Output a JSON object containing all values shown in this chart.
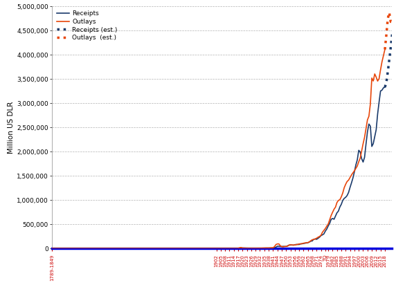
{
  "ylabel": "Million US DLR",
  "receipts_color": "#1a3a6b",
  "outlays_color": "#e8460a",
  "bg_color": "#ffffff",
  "plot_bg_color": "#ffffff",
  "ylim": [
    0,
    5000000
  ],
  "yticks": [
    0,
    500000,
    1000000,
    1500000,
    2000000,
    2500000,
    3000000,
    3500000,
    4000000,
    4500000,
    5000000
  ],
  "receipts_solid_years": [
    1789,
    1800,
    1810,
    1820,
    1830,
    1840,
    1850,
    1855,
    1860,
    1865,
    1866,
    1867,
    1868,
    1869,
    1870,
    1871,
    1872,
    1873,
    1874,
    1875,
    1876,
    1877,
    1878,
    1879,
    1880,
    1881,
    1882,
    1883,
    1884,
    1885,
    1886,
    1887,
    1888,
    1889,
    1890,
    1891,
    1892,
    1893,
    1894,
    1895,
    1896,
    1897,
    1898,
    1899,
    1900,
    1901,
    1902,
    1903,
    1904,
    1905,
    1906,
    1907,
    1908,
    1909,
    1910,
    1911,
    1912,
    1913,
    1914,
    1915,
    1916,
    1917,
    1918,
    1919,
    1920,
    1921,
    1922,
    1923,
    1924,
    1925,
    1926,
    1927,
    1928,
    1929,
    1930,
    1931,
    1932,
    1933,
    1934,
    1935,
    1936,
    1937,
    1938,
    1939,
    1940,
    1941,
    1942,
    1943,
    1944,
    1945,
    1946,
    1947,
    1948,
    1949,
    1950,
    1951,
    1952,
    1953,
    1954,
    1955,
    1956,
    1957,
    1958,
    1959,
    1960,
    1961,
    1962,
    1963,
    1964,
    1965,
    1966,
    1967,
    1968,
    1969,
    1970,
    1971,
    1972,
    1973,
    1974,
    1975,
    1976,
    1977,
    1978,
    1979,
    1980,
    1981,
    1982,
    1983,
    1984,
    1985,
    1986,
    1987,
    1988,
    1989,
    1990,
    1991,
    1992,
    1993,
    1994,
    1995,
    1996,
    1997,
    1998,
    1999,
    2000,
    2001,
    2002,
    2003,
    2004,
    2005,
    2006,
    2007,
    2008,
    2009,
    2010,
    2011,
    2012,
    2013,
    2014,
    2015,
    2016,
    2017,
    2018
  ],
  "receipts_solid_values": [
    4,
    11,
    9,
    18,
    25,
    19,
    44,
    65,
    56,
    333,
    411,
    357,
    301,
    274,
    411,
    363,
    375,
    334,
    305,
    289,
    275,
    269,
    221,
    274,
    334,
    361,
    404,
    398,
    349,
    324,
    336,
    371,
    379,
    392,
    403,
    393,
    402,
    385,
    356,
    335,
    325,
    348,
    405,
    516,
    567,
    588,
    562,
    562,
    541,
    544,
    568,
    603,
    602,
    604,
    676,
    702,
    692,
    724,
    725,
    683,
    761,
    1100,
    3645,
    5130,
    6649,
    5571,
    4026,
    3853,
    3871,
    3641,
    3795,
    4013,
    3900,
    3862,
    4058,
    3116,
    1924,
    1997,
    3015,
    3706,
    3997,
    4956,
    5588,
    4979,
    6548,
    8712,
    14634,
    24001,
    43747,
    45159,
    39296,
    38514,
    41560,
    39415,
    39443,
    51616,
    66167,
    69608,
    69701,
    65451,
    74587,
    79990,
    79636,
    79249,
    92492,
    94388,
    99676,
    106560,
    112613,
    116817,
    130835,
    148822,
    152973,
    186882,
    192807,
    187139,
    207309,
    230799,
    263224,
    279090,
    298060,
    355559,
    399561,
    463302,
    517112,
    599272,
    617766,
    600562,
    666457,
    734057,
    769155,
    854143,
    909238,
    990691,
    1031969,
    1054988,
    1091279,
    1154335,
    1257697,
    1351830,
    1453062,
    1579292,
    1721798,
    1827454,
    2025218,
    1991194,
    1853136,
    1782314,
    1880114,
    2153611,
    2406869,
    2568000,
    2524000,
    2105000,
    2163000,
    2303000,
    2450000,
    2775000,
    3021000,
    3250000,
    3268000,
    3316000,
    3329000
  ],
  "outlays_solid_years": [
    1789,
    1800,
    1810,
    1820,
    1830,
    1840,
    1850,
    1855,
    1860,
    1861,
    1862,
    1863,
    1864,
    1865,
    1866,
    1867,
    1868,
    1869,
    1870,
    1871,
    1872,
    1873,
    1874,
    1875,
    1876,
    1877,
    1878,
    1879,
    1880,
    1881,
    1882,
    1883,
    1884,
    1885,
    1886,
    1887,
    1888,
    1889,
    1890,
    1891,
    1892,
    1893,
    1894,
    1895,
    1896,
    1897,
    1898,
    1899,
    1900,
    1901,
    1902,
    1903,
    1904,
    1905,
    1906,
    1907,
    1908,
    1909,
    1910,
    1911,
    1912,
    1913,
    1914,
    1915,
    1916,
    1917,
    1918,
    1919,
    1920,
    1921,
    1922,
    1923,
    1924,
    1925,
    1926,
    1927,
    1928,
    1929,
    1930,
    1931,
    1932,
    1933,
    1934,
    1935,
    1936,
    1937,
    1938,
    1939,
    1940,
    1941,
    1942,
    1943,
    1944,
    1945,
    1946,
    1947,
    1948,
    1949,
    1950,
    1951,
    1952,
    1953,
    1954,
    1955,
    1956,
    1957,
    1958,
    1959,
    1960,
    1961,
    1962,
    1963,
    1964,
    1965,
    1966,
    1967,
    1968,
    1969,
    1970,
    1971,
    1972,
    1973,
    1974,
    1975,
    1976,
    1977,
    1978,
    1979,
    1980,
    1981,
    1982,
    1983,
    1984,
    1985,
    1986,
    1987,
    1988,
    1989,
    1990,
    1991,
    1992,
    1993,
    1994,
    1995,
    1996,
    1997,
    1998,
    1999,
    2000,
    2001,
    2002,
    2003,
    2004,
    2005,
    2006,
    2007,
    2008,
    2009,
    2010,
    2011,
    2012,
    2013,
    2014,
    2015,
    2016,
    2017,
    2018
  ],
  "outlays_solid_values": [
    4,
    12,
    11,
    18,
    27,
    24,
    40,
    56,
    63,
    67,
    475,
    715,
    865,
    1298,
    521,
    358,
    378,
    321,
    310,
    292,
    278,
    290,
    298,
    275,
    269,
    239,
    237,
    218,
    268,
    260,
    269,
    261,
    258,
    242,
    248,
    239,
    227,
    228,
    318,
    348,
    366,
    352,
    338,
    319,
    335,
    345,
    355,
    372,
    521,
    524,
    485,
    518,
    584,
    567,
    570,
    579,
    659,
    694,
    735,
    691,
    743,
    733,
    760,
    746,
    713,
    1954,
    12677,
    18493,
    6358,
    5062,
    3289,
    3140,
    2908,
    2924,
    2930,
    2857,
    2961,
    3127,
    3320,
    3577,
    4659,
    4598,
    6645,
    6521,
    8422,
    7580,
    6840,
    8858,
    9468,
    13653,
    35137,
    78555,
    91304,
    92712,
    55232,
    34496,
    29764,
    38835,
    42562,
    45514,
    67686,
    76101,
    70855,
    68444,
    70640,
    76578,
    82405,
    92098,
    92191,
    97723,
    106821,
    111316,
    118528,
    118228,
    134532,
    157464,
    178134,
    183640,
    195649,
    210172,
    230681,
    245707,
    269359,
    332332,
    371792,
    409218,
    458746,
    504032,
    590947,
    678241,
    745755,
    808364,
    851846,
    946396,
    990382,
    1004017,
    1064455,
    1143744,
    1252994,
    1323793,
    1381529,
    1409386,
    1461731,
    1515742,
    1560484,
    1601116,
    1652552,
    1701842,
    1788950,
    1862846,
    2010894,
    2159899,
    2292841,
    2471957,
    2655050,
    2728686,
    2982544,
    3517677,
    3457079,
    3603000,
    3537000,
    3455000,
    3506000,
    3688000,
    3853000,
    3982000,
    4108000
  ],
  "receipts_est_years": [
    2018,
    2019,
    2020,
    2021,
    2022,
    2023
  ],
  "receipts_est_values": [
    3329000,
    3422000,
    3645000,
    3894000,
    4145000,
    4420000
  ],
  "outlays_est_years": [
    2018,
    2019,
    2020,
    2021,
    2022,
    2023
  ],
  "outlays_est_values": [
    4108000,
    4407000,
    4745000,
    4870000,
    4680000,
    4680000
  ],
  "xtick_positions": [
    1789,
    1902,
    1905,
    1908,
    1911,
    1914,
    1917,
    1920,
    1923,
    1926,
    1929,
    1932,
    1935,
    1938,
    1941,
    1944,
    1947,
    1950,
    1953,
    1956,
    1959,
    1962,
    1965,
    1968,
    1971,
    1974,
    1977,
    1979,
    1982,
    1985,
    1988,
    1991,
    1994,
    1997,
    2000,
    2003,
    2006,
    2009,
    2012,
    2015,
    2018
  ],
  "xtick_labels": [
    "1789-1849",
    "1902",
    "1905",
    "1908",
    "1911",
    "1914",
    "1917",
    "1920",
    "1923",
    "1926",
    "1929",
    "1932",
    "1935",
    "1938",
    "1941",
    "1944",
    "1947",
    "1950",
    "1953",
    "1956",
    "1959",
    "1962",
    "1965",
    "1968",
    "1971",
    "1974",
    "TQ",
    "1979",
    "1982",
    "1985",
    "1988",
    "1991",
    "1994",
    "1997",
    "2000",
    "2003",
    "2006",
    "2009",
    "2012",
    "2015",
    "2018"
  ],
  "xaxis_spine_color": "#0000dd",
  "xaxis_tick_color": "#cc0000",
  "figsize": [
    5.72,
    4.12
  ],
  "dpi": 100
}
